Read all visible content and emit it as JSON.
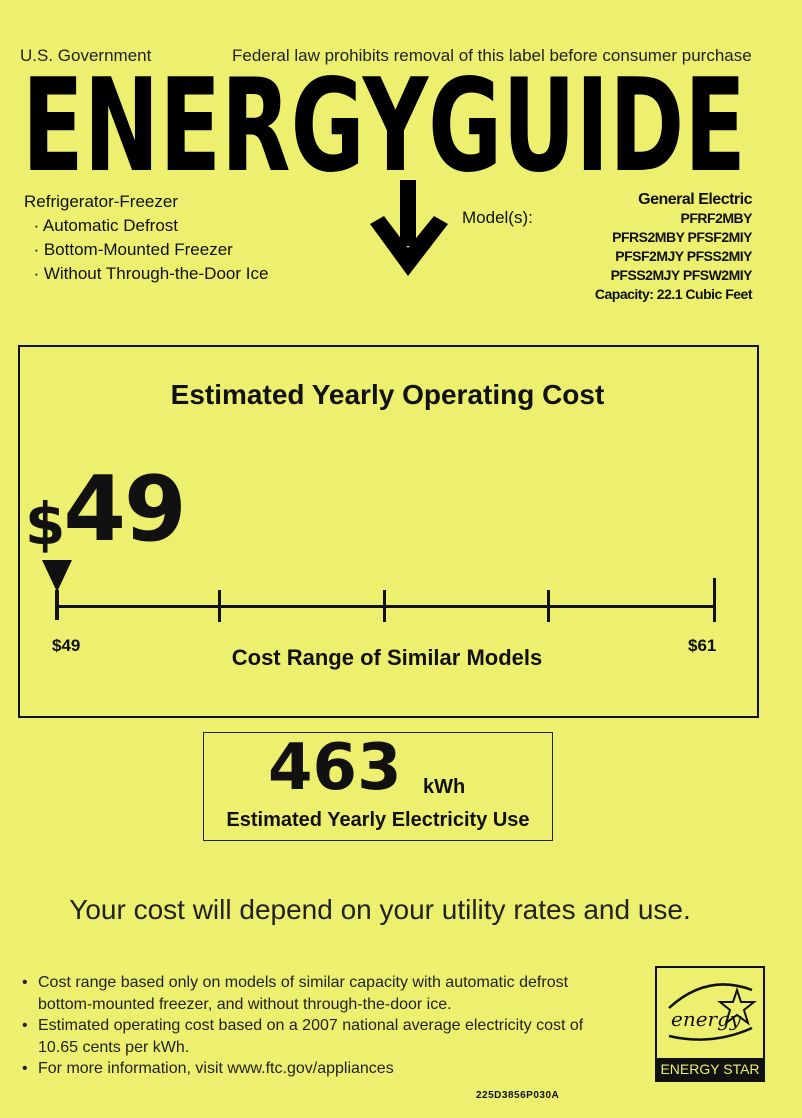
{
  "header": {
    "government": "U.S. Government",
    "notice": "Federal law prohibits removal of this label before consumer purchase",
    "title": "ENERGYGUIDE"
  },
  "product": {
    "type": "Refrigerator-Freezer",
    "features": [
      "Automatic Defrost",
      "Bottom-Mounted Freezer",
      "Without Through-the-Door Ice"
    ],
    "models_label": "Model(s):",
    "manufacturer": "General Electric",
    "model_lines": [
      "PFRF2MBY",
      "PFRS2MBY PFSF2MIY",
      "PFSF2MJY PFSS2MIY",
      "PFSS2MJY PFSW2MIY"
    ],
    "capacity": "Capacity: 22.1 Cubic Feet"
  },
  "cost": {
    "title": "Estimated Yearly Operating Cost",
    "currency": "$",
    "value": "49",
    "range_min": "$49",
    "range_max": "$61",
    "range_caption": "Cost Range of Similar Models",
    "marker_position_fraction": 0
  },
  "electricity": {
    "value": "463",
    "unit": "kWh",
    "caption": "Estimated Yearly Electricity Use"
  },
  "depend_text": "Your cost will depend on your utility rates and use.",
  "notes": [
    "Cost range based only on models of similar capacity with automatic defrost bottom-mounted freezer, and without through-the-door ice.",
    "Estimated operating cost based on a 2007 national average electricity cost of 10.65 cents per kWh.",
    "For more information, visit www.ftc.gov/appliances"
  ],
  "label_code": "225D3856P030A",
  "energy_star": {
    "script": "energy",
    "label": "ENERGY STAR"
  }
}
